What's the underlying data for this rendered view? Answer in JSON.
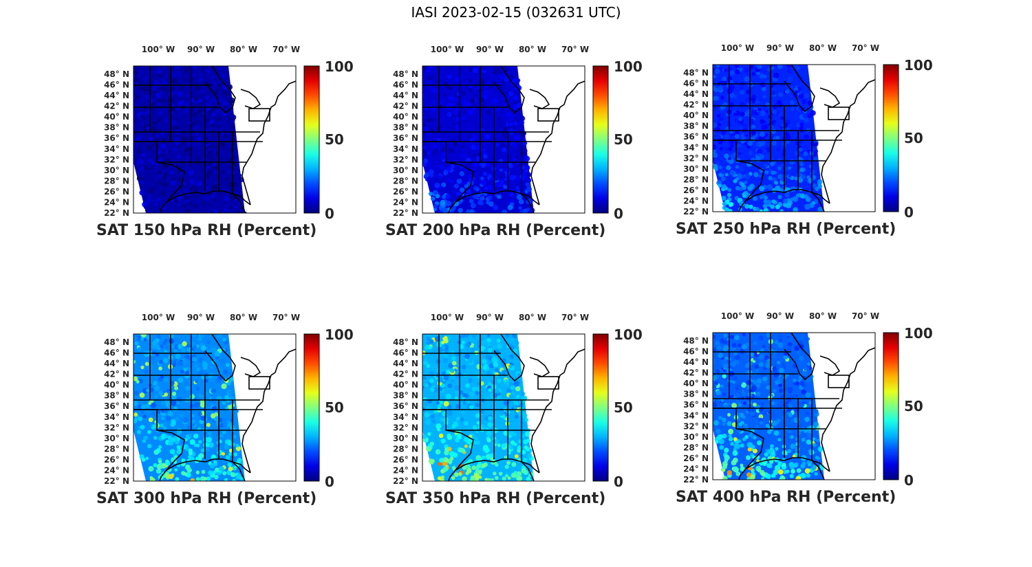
{
  "figure": {
    "title": "IASI 2023-02-15 (032631 UTC)"
  },
  "map": {
    "lon_ticks": [
      "100° W",
      "90° W",
      "80° W",
      "70° W"
    ],
    "lat_ticks": [
      "48° N",
      "46° N",
      "44° N",
      "42° N",
      "40° N",
      "38° N",
      "36° N",
      "34° N",
      "32° N",
      "30° N",
      "28° N",
      "26° N",
      "24° N",
      "22° N"
    ],
    "colormap": "jet",
    "colorbar_ticks": [
      "100",
      "50",
      "0"
    ],
    "colors": {
      "land_lines": "#000000",
      "background": "#ffffff"
    }
  },
  "panels": [
    {
      "title": "SAT 150 hPa RH (Percent)",
      "pressure_hPa": 150,
      "humidity_level": 0.04
    },
    {
      "title": "SAT 200 hPa RH (Percent)",
      "pressure_hPa": 200,
      "humidity_level": 0.08
    },
    {
      "title": "SAT 250 hPa RH (Percent)",
      "pressure_hPa": 250,
      "humidity_level": 0.16
    },
    {
      "title": "SAT 300 hPa RH (Percent)",
      "pressure_hPa": 300,
      "humidity_level": 0.26
    },
    {
      "title": "SAT 350 hPa RH (Percent)",
      "pressure_hPa": 350,
      "humidity_level": 0.3
    },
    {
      "title": "SAT 400 hPa RH (Percent)",
      "pressure_hPa": 400,
      "humidity_level": 0.22
    }
  ]
}
